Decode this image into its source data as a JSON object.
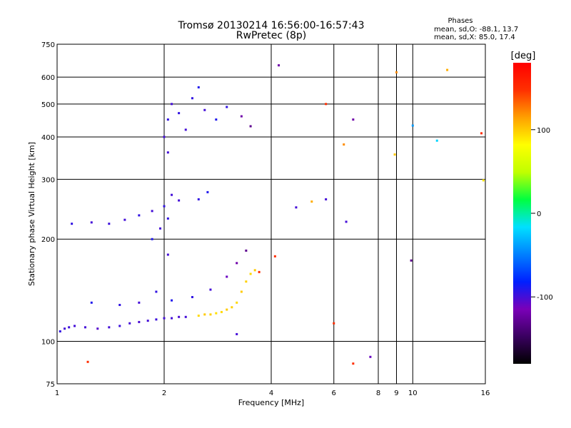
{
  "chart_data": {
    "type": "scatter",
    "title": "Tromsø 20130214 16:56:00-16:57:43",
    "subtitle": "RwPretec (8p)",
    "xlabel": "Frequency [MHz]",
    "ylabel": "Stationary phase Virtual Height [km]",
    "x_scale": "log",
    "y_scale": "log",
    "xlim": [
      1,
      16
    ],
    "ylim": [
      75,
      750
    ],
    "x_ticks": [
      1,
      2,
      4,
      6,
      8,
      10,
      16
    ],
    "x_minor_ticks": [
      9
    ],
    "y_ticks": [
      75,
      100,
      200,
      300,
      400,
      500,
      600,
      750
    ],
    "x_grid": [
      2,
      4,
      6,
      8,
      9,
      10
    ],
    "y_grid": [
      100,
      200,
      300,
      400,
      500,
      600
    ],
    "grid": true,
    "stats_header": "Phases",
    "stats": [
      "mean, sd,O: -88.1, 13.7",
      "mean, sd,X:  85.0, 17.4"
    ],
    "colorbar": {
      "label": "[deg]",
      "min": -180,
      "max": 180,
      "ticks": [
        100,
        0,
        -100
      ],
      "stops": [
        "#000000",
        "#3a0060",
        "#7a00b8",
        "#0020ff",
        "#0080ff",
        "#00e0ff",
        "#00ff40",
        "#c0ff00",
        "#ffff00",
        "#ffa000",
        "#ff3000",
        "#ff0000"
      ]
    },
    "series": [
      {
        "values": [
          {
            "x": 1.02,
            "y": 107,
            "phase": -95
          },
          {
            "x": 1.05,
            "y": 109,
            "phase": -100
          },
          {
            "x": 1.08,
            "y": 110,
            "phase": -98
          },
          {
            "x": 1.12,
            "y": 111,
            "phase": -100
          },
          {
            "x": 1.2,
            "y": 110,
            "phase": -100
          },
          {
            "x": 1.3,
            "y": 109,
            "phase": -105
          },
          {
            "x": 1.4,
            "y": 110,
            "phase": -100
          },
          {
            "x": 1.5,
            "y": 111,
            "phase": -98
          },
          {
            "x": 1.6,
            "y": 113,
            "phase": -100
          },
          {
            "x": 1.7,
            "y": 114,
            "phase": -102
          },
          {
            "x": 1.8,
            "y": 115,
            "phase": -100
          },
          {
            "x": 1.9,
            "y": 116,
            "phase": -98
          },
          {
            "x": 2.0,
            "y": 117,
            "phase": -100
          },
          {
            "x": 2.1,
            "y": 117,
            "phase": -100
          },
          {
            "x": 2.2,
            "y": 118,
            "phase": -102
          },
          {
            "x": 2.3,
            "y": 118,
            "phase": -100
          },
          {
            "x": 2.5,
            "y": 119,
            "phase": 95
          },
          {
            "x": 2.6,
            "y": 120,
            "phase": 100
          },
          {
            "x": 2.7,
            "y": 120,
            "phase": 98
          },
          {
            "x": 2.8,
            "y": 121,
            "phase": 92
          },
          {
            "x": 2.9,
            "y": 122,
            "phase": 95
          },
          {
            "x": 3.0,
            "y": 124,
            "phase": 100
          },
          {
            "x": 3.1,
            "y": 126,
            "phase": 98
          },
          {
            "x": 3.2,
            "y": 130,
            "phase": 95
          },
          {
            "x": 3.3,
            "y": 140,
            "phase": 100
          },
          {
            "x": 3.4,
            "y": 150,
            "phase": 98
          },
          {
            "x": 3.5,
            "y": 158,
            "phase": 95
          },
          {
            "x": 3.6,
            "y": 162,
            "phase": 100
          },
          {
            "x": 3.7,
            "y": 160,
            "phase": 150
          },
          {
            "x": 1.25,
            "y": 130,
            "phase": -90
          },
          {
            "x": 1.5,
            "y": 128,
            "phase": -95
          },
          {
            "x": 1.7,
            "y": 130,
            "phase": -100
          },
          {
            "x": 1.9,
            "y": 140,
            "phase": -95
          },
          {
            "x": 2.1,
            "y": 132,
            "phase": -90
          },
          {
            "x": 2.4,
            "y": 135,
            "phase": -95
          },
          {
            "x": 2.7,
            "y": 142,
            "phase": -100
          },
          {
            "x": 3.0,
            "y": 155,
            "phase": -110
          },
          {
            "x": 3.2,
            "y": 170,
            "phase": -120
          },
          {
            "x": 3.4,
            "y": 185,
            "phase": -130
          },
          {
            "x": 1.1,
            "y": 222,
            "phase": -95
          },
          {
            "x": 1.25,
            "y": 224,
            "phase": -100
          },
          {
            "x": 1.4,
            "y": 222,
            "phase": -98
          },
          {
            "x": 1.55,
            "y": 228,
            "phase": -100
          },
          {
            "x": 1.7,
            "y": 235,
            "phase": -95
          },
          {
            "x": 1.85,
            "y": 242,
            "phase": -100
          },
          {
            "x": 2.0,
            "y": 250,
            "phase": -95
          },
          {
            "x": 2.2,
            "y": 260,
            "phase": -100
          },
          {
            "x": 2.5,
            "y": 262,
            "phase": -95
          },
          {
            "x": 2.65,
            "y": 275,
            "phase": -90
          },
          {
            "x": 1.85,
            "y": 200,
            "phase": -90
          },
          {
            "x": 1.95,
            "y": 215,
            "phase": -100
          },
          {
            "x": 2.05,
            "y": 230,
            "phase": -95
          },
          {
            "x": 2.1,
            "y": 270,
            "phase": -100
          },
          {
            "x": 2.05,
            "y": 180,
            "phase": -100
          },
          {
            "x": 2.0,
            "y": 400,
            "phase": -100
          },
          {
            "x": 2.05,
            "y": 450,
            "phase": -95
          },
          {
            "x": 2.1,
            "y": 500,
            "phase": -100
          },
          {
            "x": 2.2,
            "y": 470,
            "phase": -95
          },
          {
            "x": 2.3,
            "y": 420,
            "phase": -100
          },
          {
            "x": 2.4,
            "y": 520,
            "phase": -95
          },
          {
            "x": 2.5,
            "y": 560,
            "phase": -90
          },
          {
            "x": 2.6,
            "y": 480,
            "phase": -100
          },
          {
            "x": 2.8,
            "y": 450,
            "phase": -90
          },
          {
            "x": 3.0,
            "y": 490,
            "phase": -95
          },
          {
            "x": 3.3,
            "y": 460,
            "phase": -120
          },
          {
            "x": 3.5,
            "y": 430,
            "phase": -130
          },
          {
            "x": 2.05,
            "y": 360,
            "phase": -100
          },
          {
            "x": 4.2,
            "y": 650,
            "phase": -120
          },
          {
            "x": 5.7,
            "y": 500,
            "phase": 150
          },
          {
            "x": 6.4,
            "y": 380,
            "phase": 120
          },
          {
            "x": 6.8,
            "y": 450,
            "phase": -120
          },
          {
            "x": 6.5,
            "y": 225,
            "phase": -100
          },
          {
            "x": 4.7,
            "y": 248,
            "phase": -100
          },
          {
            "x": 5.7,
            "y": 262,
            "phase": -100
          },
          {
            "x": 4.1,
            "y": 178,
            "phase": 150
          },
          {
            "x": 9.9,
            "y": 173,
            "phase": -130
          },
          {
            "x": 7.6,
            "y": 90,
            "phase": -110
          },
          {
            "x": 6.8,
            "y": 86,
            "phase": 150
          },
          {
            "x": 6.0,
            "y": 113,
            "phase": 150
          },
          {
            "x": 9.0,
            "y": 620,
            "phase": 120
          },
          {
            "x": 12.5,
            "y": 630,
            "phase": 110
          },
          {
            "x": 11.7,
            "y": 390,
            "phase": -20
          },
          {
            "x": 15.6,
            "y": 410,
            "phase": 150
          },
          {
            "x": 8.9,
            "y": 355,
            "phase": 100
          },
          {
            "x": 15.8,
            "y": 298,
            "phase": 90
          },
          {
            "x": 10.0,
            "y": 432,
            "phase": -40
          },
          {
            "x": 1.22,
            "y": 87,
            "phase": 150
          },
          {
            "x": 3.2,
            "y": 105,
            "phase": -100
          },
          {
            "x": 5.2,
            "y": 258,
            "phase": 110
          }
        ]
      }
    ]
  }
}
